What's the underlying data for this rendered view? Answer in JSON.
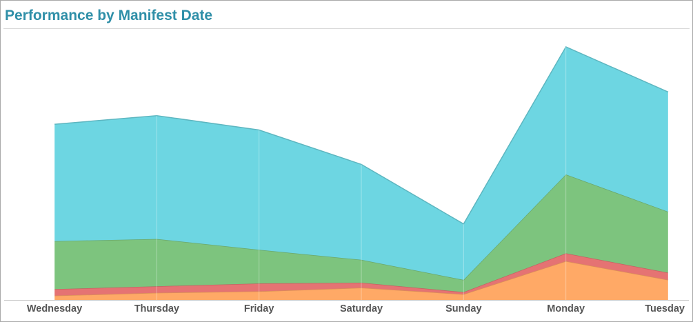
{
  "header": {
    "title": "Performance by Manifest Date"
  },
  "chart_data": {
    "type": "area",
    "stacked": true,
    "categories": [
      "Wednesday",
      "Thursday",
      "Friday",
      "Saturday",
      "Sunday",
      "Monday",
      "Tuesday"
    ],
    "ylim": [
      0,
      375
    ],
    "grid": false,
    "legend": "none",
    "series": [
      {
        "color": "#ffa966",
        "values": [
          6,
          10,
          12,
          17,
          8,
          54,
          28
        ]
      },
      {
        "color": "#e57373",
        "values": [
          9,
          9,
          11,
          7,
          3,
          11,
          10
        ]
      },
      {
        "color": "#7dc47e",
        "values": [
          67,
          66,
          47,
          32,
          17,
          110,
          85
        ]
      },
      {
        "color": "#6dd6e2",
        "values": [
          163,
          172,
          167,
          133,
          78,
          178,
          167
        ]
      }
    ]
  }
}
